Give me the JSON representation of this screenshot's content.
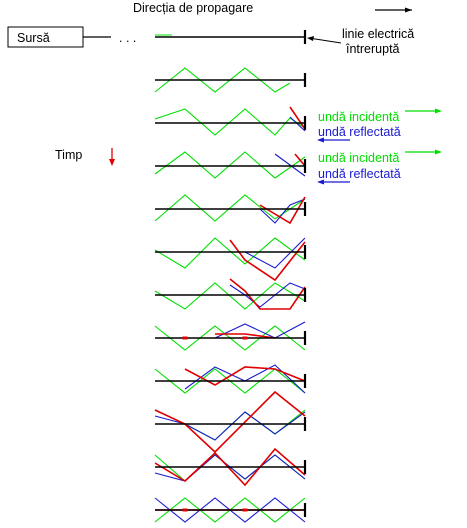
{
  "labels": {
    "direction": "Direcția de propagare",
    "source": "Sursă",
    "dots": ". . .",
    "broken_line_1": "linie electrică",
    "broken_line_2": "întreruptă",
    "incident": "undă incidentă",
    "reflected": "undă reflectată",
    "time": "Timp"
  },
  "colors": {
    "line": "#000000",
    "incident": "#00e000",
    "reflected": "#1a1ad0",
    "sum": "#e00000"
  }
}
